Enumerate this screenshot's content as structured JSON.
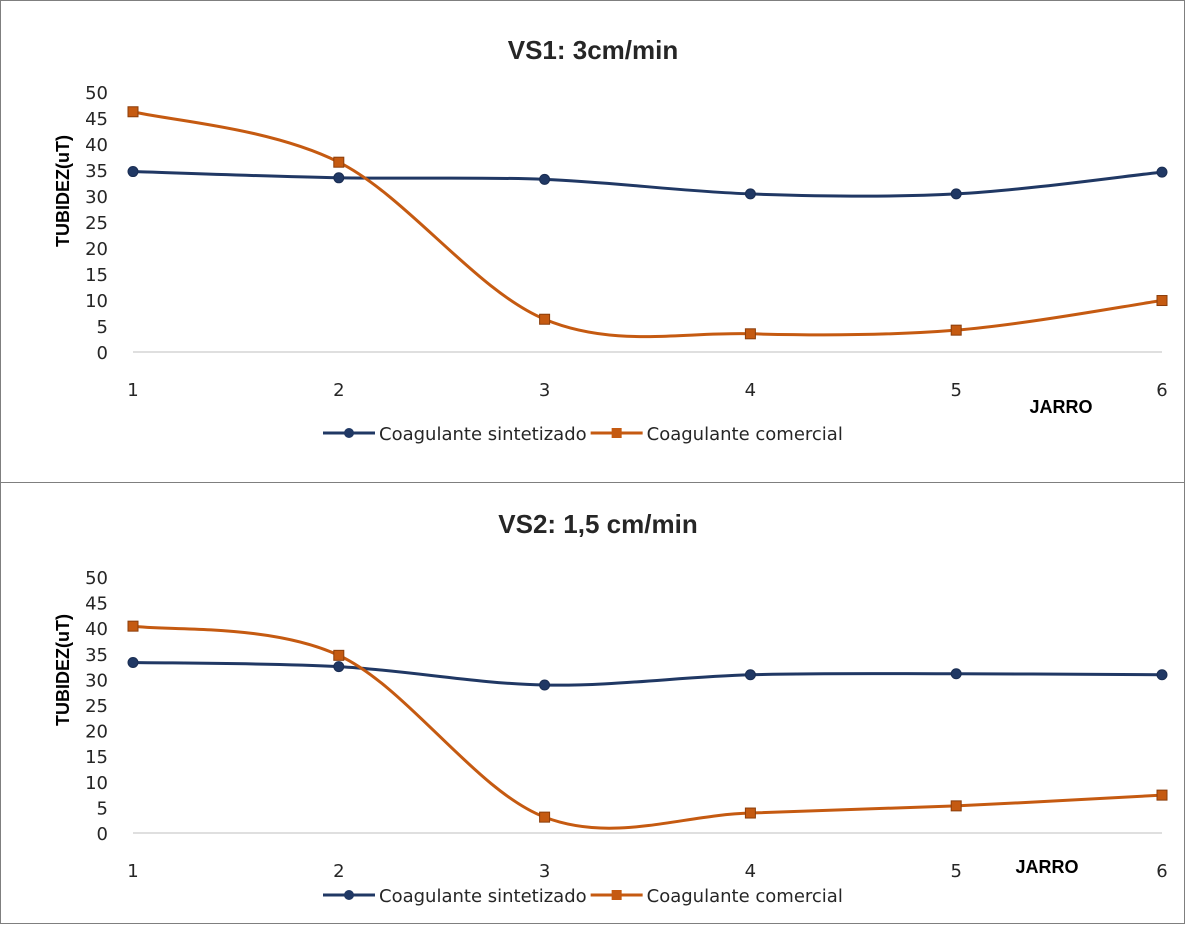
{
  "chart_data": [
    {
      "type": "line",
      "title": "VS1: 3cm/min",
      "xlabel": "JARRO",
      "ylabel": "TUBIDEZ(uT)",
      "categories": [
        "1",
        "2",
        "3",
        "4",
        "5",
        "6"
      ],
      "yticks": [
        "0",
        "5",
        "10",
        "15",
        "20",
        "25",
        "30",
        "35",
        "40",
        "45",
        "50"
      ],
      "ylim": [
        0,
        50
      ],
      "grid": false,
      "legend": "bottom",
      "smooth": true,
      "series": [
        {
          "name": "Coagulante sintetizado",
          "color": "#203864",
          "marker": "circle",
          "values": [
            34.7,
            33.5,
            33.2,
            30.4,
            30.4,
            34.6
          ]
        },
        {
          "name": "Coagulante comercial",
          "color": "#c55a11",
          "marker": "square",
          "values": [
            46.2,
            36.5,
            6.3,
            3.5,
            4.2,
            9.9
          ]
        }
      ]
    },
    {
      "type": "line",
      "title": "VS2: 1,5 cm/min",
      "xlabel": "JARRO",
      "ylabel": "TUBIDEZ(uT)",
      "categories": [
        "1",
        "2",
        "3",
        "4",
        "5",
        "6"
      ],
      "yticks": [
        "0",
        "5",
        "10",
        "15",
        "20",
        "25",
        "30",
        "35",
        "40",
        "45",
        "50"
      ],
      "ylim": [
        0,
        50
      ],
      "grid": false,
      "legend": "bottom",
      "smooth": true,
      "series": [
        {
          "name": "Coagulante sintetizado",
          "color": "#203864",
          "marker": "circle",
          "values": [
            33.3,
            32.5,
            28.9,
            30.9,
            31.1,
            30.9
          ]
        },
        {
          "name": "Coagulante comercial",
          "color": "#c55a11",
          "marker": "square",
          "values": [
            40.4,
            34.7,
            3.1,
            3.9,
            5.3,
            7.4
          ]
        }
      ]
    }
  ]
}
